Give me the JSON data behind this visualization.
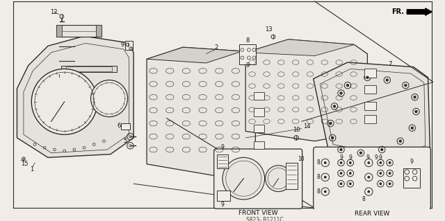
{
  "bg_color": "#f0ede8",
  "line_color": "#2a2a2a",
  "diagram_code": "S823- B1211C",
  "front_view_label": "FRONT VIEW",
  "rear_view_label": "REAR VIEW",
  "fr_label": "FR."
}
